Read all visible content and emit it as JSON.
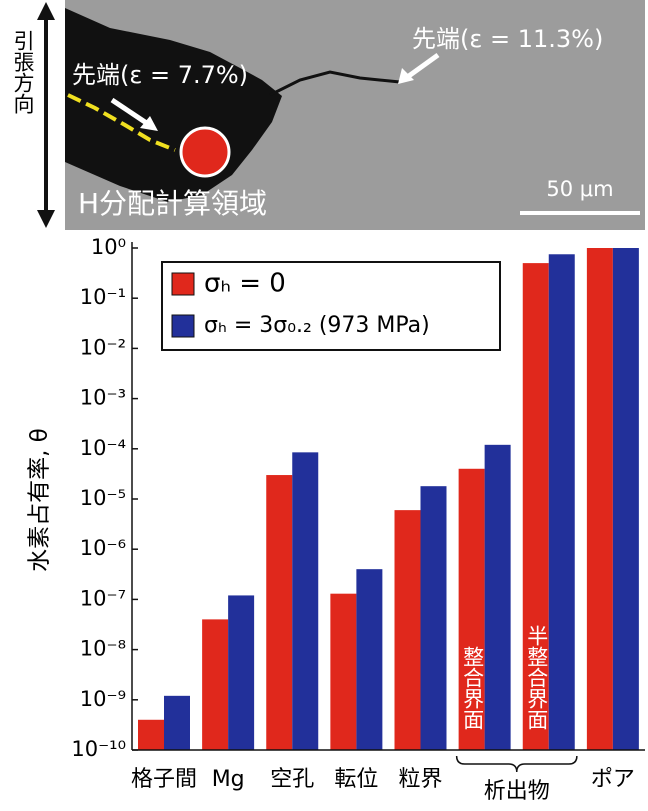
{
  "figure_panel": {
    "direction_label": "引張方向",
    "tip_far": "先端(ε = 11.3%)",
    "tip_near": "先端(ε = 7.7%)",
    "region_label": "H分配計算領域",
    "scale_label": "50 μm"
  },
  "chart_data": {
    "type": "bar",
    "y_label": "水素占有率, θ",
    "y_scale": "log",
    "categories": [
      "格子間",
      "Mg",
      "空孔",
      "転位",
      "粒界",
      "整合界面",
      "半整合界面",
      "ポア"
    ],
    "series": [
      {
        "name": "σₕ = 0",
        "color": "#e0281c",
        "values": [
          4e-10,
          4e-08,
          3e-05,
          1.3e-07,
          6e-06,
          4e-05,
          0.5,
          1
        ]
      },
      {
        "name": "σₕ = 3σ₀.₂ (973 MPa)",
        "color": "#22309a",
        "values": [
          1.2e-09,
          1.2e-07,
          8.5e-05,
          4e-07,
          1.8e-05,
          0.00012,
          0.75,
          1
        ]
      }
    ],
    "ylim": [
      1e-10,
      1
    ],
    "yticks": [
      {
        "value": 1,
        "label": "10⁰"
      },
      {
        "value": 0.1,
        "label": "10⁻¹"
      },
      {
        "value": 0.01,
        "label": "10⁻²"
      },
      {
        "value": 0.001,
        "label": "10⁻³"
      },
      {
        "value": 0.0001,
        "label": "10⁻⁴"
      },
      {
        "value": 1e-05,
        "label": "10⁻⁵"
      },
      {
        "value": 1e-06,
        "label": "10⁻⁶"
      },
      {
        "value": 1e-07,
        "label": "10⁻⁷"
      },
      {
        "value": 1e-08,
        "label": "10⁻⁸"
      },
      {
        "value": 1e-09,
        "label": "10⁻⁹"
      },
      {
        "value": 1e-10,
        "label": "10⁻¹⁰"
      }
    ],
    "groups": [
      {
        "label": "析出物",
        "span": [
          5,
          6
        ]
      }
    ],
    "legend": "upper-left"
  }
}
